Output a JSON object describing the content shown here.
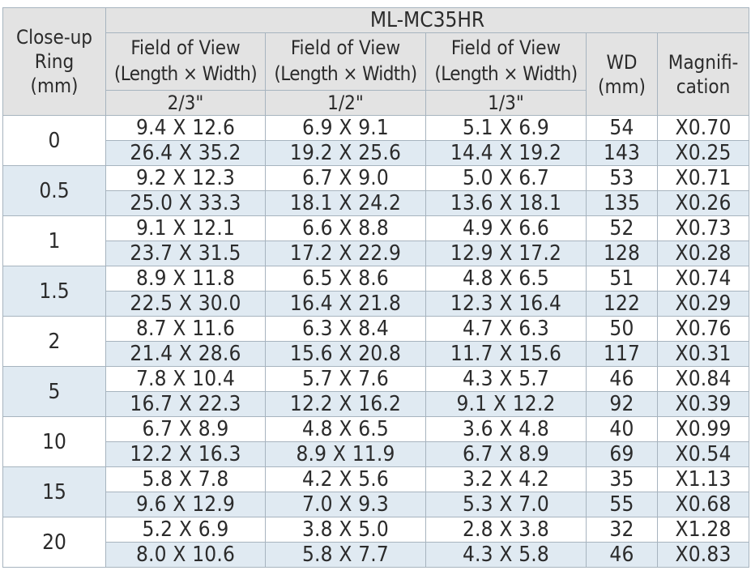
{
  "header": {
    "close_up_ring": [
      "Close-up",
      "Ring",
      "(mm)"
    ],
    "model": "ML-MC35HR",
    "fov_line1": "Field of View",
    "fov_line2": "(Length × Width)",
    "sensor_sizes": [
      "2/3\"",
      "1/2\"",
      "1/3\""
    ],
    "wd": [
      "WD",
      "(mm)"
    ],
    "magnification": [
      "Magnifi-",
      "cation"
    ]
  },
  "rows": [
    {
      "ring": "0",
      "lines": [
        [
          "9.4 X 12.6",
          "6.9 X 9.1",
          "5.1 X 6.9",
          "54",
          "X0.70"
        ],
        [
          "26.4 X 35.2",
          "19.2 X 25.6",
          "14.4 X 19.2",
          "143",
          "X0.25"
        ]
      ]
    },
    {
      "ring": "0.5",
      "lines": [
        [
          "9.2 X 12.3",
          "6.7 X 9.0",
          "5.0 X 6.7",
          "53",
          "X0.71"
        ],
        [
          "25.0 X 33.3",
          "18.1 X 24.2",
          "13.6 X 18.1",
          "135",
          "X0.26"
        ]
      ]
    },
    {
      "ring": "1",
      "lines": [
        [
          "9.1 X 12.1",
          "6.6 X 8.8",
          "4.9 X 6.6",
          "52",
          "X0.73"
        ],
        [
          "23.7 X 31.5",
          "17.2 X 22.9",
          "12.9 X 17.2",
          "128",
          "X0.28"
        ]
      ]
    },
    {
      "ring": "1.5",
      "lines": [
        [
          "8.9 X 11.8",
          "6.5 X 8.6",
          "4.8 X 6.5",
          "51",
          "X0.74"
        ],
        [
          "22.5 X 30.0",
          "16.4 X 21.8",
          "12.3 X 16.4",
          "122",
          "X0.29"
        ]
      ]
    },
    {
      "ring": "2",
      "lines": [
        [
          "8.7 X 11.6",
          "6.3 X 8.4",
          "4.7 X 6.3",
          "50",
          "X0.76"
        ],
        [
          "21.4 X 28.6",
          "15.6 X 20.8",
          "11.7 X 15.6",
          "117",
          "X0.31"
        ]
      ]
    },
    {
      "ring": "5",
      "lines": [
        [
          "7.8 X 10.4",
          "5.7 X 7.6",
          "4.3 X 5.7",
          "46",
          "X0.84"
        ],
        [
          "16.7 X 22.3",
          "12.2 X 16.2",
          "9.1 X 12.2",
          "92",
          "X0.39"
        ]
      ]
    },
    {
      "ring": "10",
      "lines": [
        [
          "6.7 X 8.9",
          "4.8 X 6.5",
          "3.6 X 4.8",
          "40",
          "X0.99"
        ],
        [
          "12.2 X 16.3",
          "8.9 X 11.9",
          "6.7 X 8.9",
          "69",
          "X0.54"
        ]
      ]
    },
    {
      "ring": "15",
      "lines": [
        [
          "5.8 X 7.8",
          "4.2 X 5.6",
          "3.2 X 4.2",
          "35",
          "X1.13"
        ],
        [
          "9.6 X 12.9",
          "7.0 X 9.3",
          "5.3 X 7.0",
          "55",
          "X0.68"
        ]
      ]
    },
    {
      "ring": "20",
      "lines": [
        [
          "5.2 X 6.9",
          "3.8 X 5.0",
          "2.8 X 3.8",
          "32",
          "X1.28"
        ],
        [
          "8.0 X 10.6",
          "5.8 X 7.7",
          "4.3 X 5.8",
          "46",
          "X0.83"
        ]
      ]
    }
  ],
  "colors": {
    "header_bg": "#e3e3e3",
    "alt_row_bg": "#e0eaf2",
    "border": "#a7b4bf"
  }
}
